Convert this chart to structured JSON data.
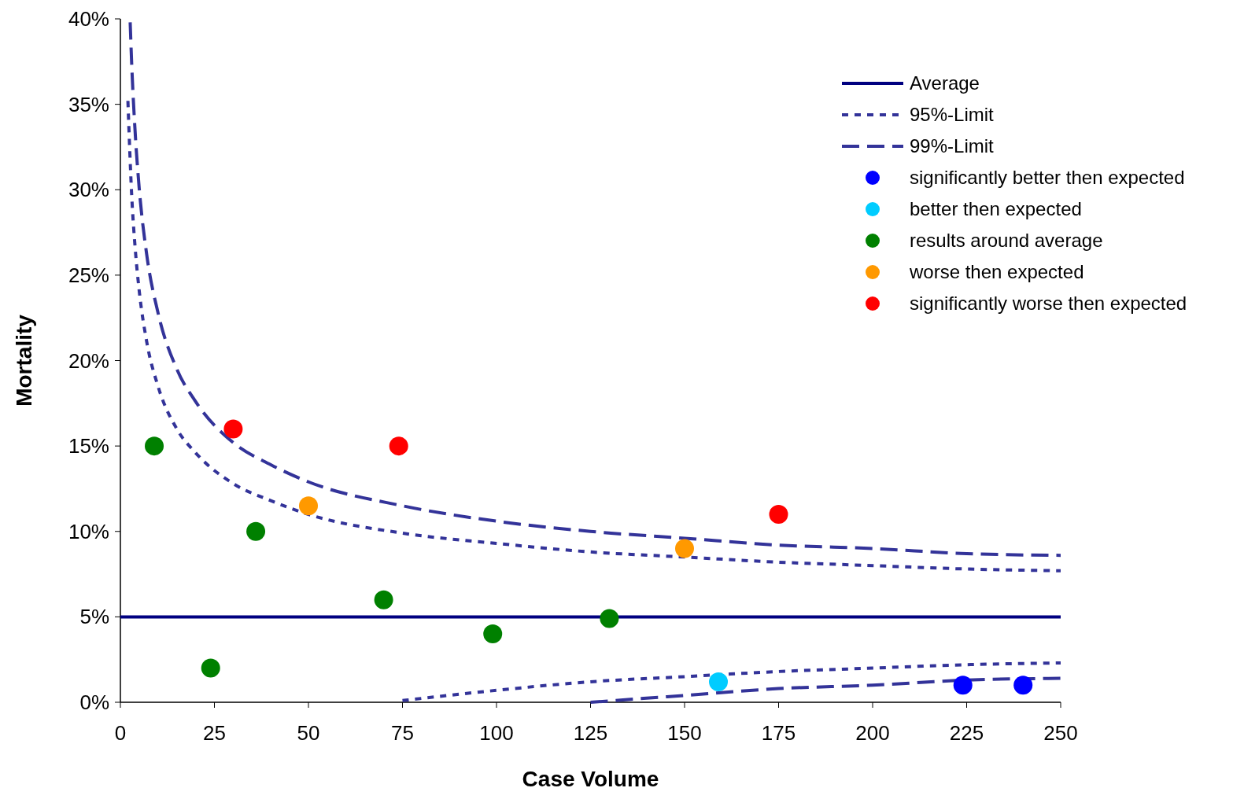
{
  "chart_data": {
    "type": "scatter",
    "xlabel": "Case Volume",
    "ylabel": "Mortality",
    "xlim": [
      0,
      250
    ],
    "xticks": [
      0,
      25,
      50,
      75,
      100,
      125,
      150,
      175,
      200,
      225,
      250
    ],
    "ylim": [
      0,
      40
    ],
    "yticks": [
      {
        "value": 0,
        "label": "0%"
      },
      {
        "value": 5,
        "label": "5%"
      },
      {
        "value": 10,
        "label": "10%"
      },
      {
        "value": 15,
        "label": "15%"
      },
      {
        "value": 20,
        "label": "20%"
      },
      {
        "value": 25,
        "label": "25%"
      },
      {
        "value": 30,
        "label": "30%"
      },
      {
        "value": 35,
        "label": "35%"
      },
      {
        "value": 40,
        "label": "40%"
      }
    ],
    "grid": false,
    "legend": "top right",
    "series": [
      {
        "name": "Average",
        "type": "line",
        "color": "#000080",
        "line_style": "solid",
        "x": [
          0,
          250
        ],
        "values": [
          5,
          5
        ]
      },
      {
        "name": "95%-Limit",
        "type": "line",
        "color": "#333399",
        "line_style": "dotted",
        "x": [
          2,
          3,
          4,
          5,
          7,
          10,
          15,
          20,
          30,
          40,
          50,
          75,
          100,
          125,
          150,
          175,
          200,
          225,
          250
        ],
        "values": [
          35.2,
          29.7,
          26.4,
          24.1,
          21.1,
          18.5,
          16.0,
          14.6,
          12.8,
          11.8,
          11.0,
          9.9,
          9.3,
          8.8,
          8.5,
          8.2,
          8.0,
          7.8,
          7.7
        ]
      },
      {
        "type": "line",
        "color": "#333399",
        "line_style": "dotted",
        "x": [
          75,
          100,
          125,
          150,
          175,
          200,
          225,
          250
        ],
        "values": [
          0.1,
          0.7,
          1.2,
          1.5,
          1.8,
          2.0,
          2.2,
          2.3
        ]
      },
      {
        "name": "99%-Limit",
        "type": "line",
        "color": "#333399",
        "line_style": "dashed",
        "x": [
          2.6,
          3,
          4,
          5,
          7,
          10,
          15,
          20,
          30,
          40,
          50,
          75,
          100,
          125,
          150,
          175,
          200,
          225,
          250
        ],
        "values": [
          39.8,
          37.4,
          33.1,
          30.1,
          26.2,
          22.8,
          19.5,
          17.6,
          15.2,
          13.9,
          12.9,
          11.5,
          10.6,
          10.0,
          9.6,
          9.2,
          9.0,
          8.7,
          8.6
        ]
      },
      {
        "type": "line",
        "color": "#333399",
        "line_style": "dashed",
        "x": [
          125,
          150,
          175,
          200,
          225,
          250
        ],
        "values": [
          0.0,
          0.4,
          0.8,
          1.0,
          1.3,
          1.4
        ]
      },
      {
        "name": "significantly better then expected",
        "color": "#0000ff",
        "marker": "circle",
        "x": [
          224,
          240
        ],
        "values": [
          1.0,
          1.0
        ]
      },
      {
        "name": "better then expected",
        "color": "#00ccff",
        "marker": "circle",
        "x": [
          159
        ],
        "values": [
          1.2
        ]
      },
      {
        "name": "results around average",
        "color": "#008000",
        "marker": "circle",
        "x": [
          9,
          24,
          36,
          70,
          99,
          130
        ],
        "values": [
          15,
          2,
          10,
          6,
          4,
          4.9
        ]
      },
      {
        "name": "worse then expected",
        "color": "#ff9900",
        "marker": "circle",
        "x": [
          50,
          150
        ],
        "values": [
          11.5,
          9
        ]
      },
      {
        "name": "significantly worse then expected",
        "color": "#ff0000",
        "marker": "circle",
        "x": [
          30,
          74,
          175
        ],
        "values": [
          16,
          15,
          11
        ]
      }
    ]
  }
}
